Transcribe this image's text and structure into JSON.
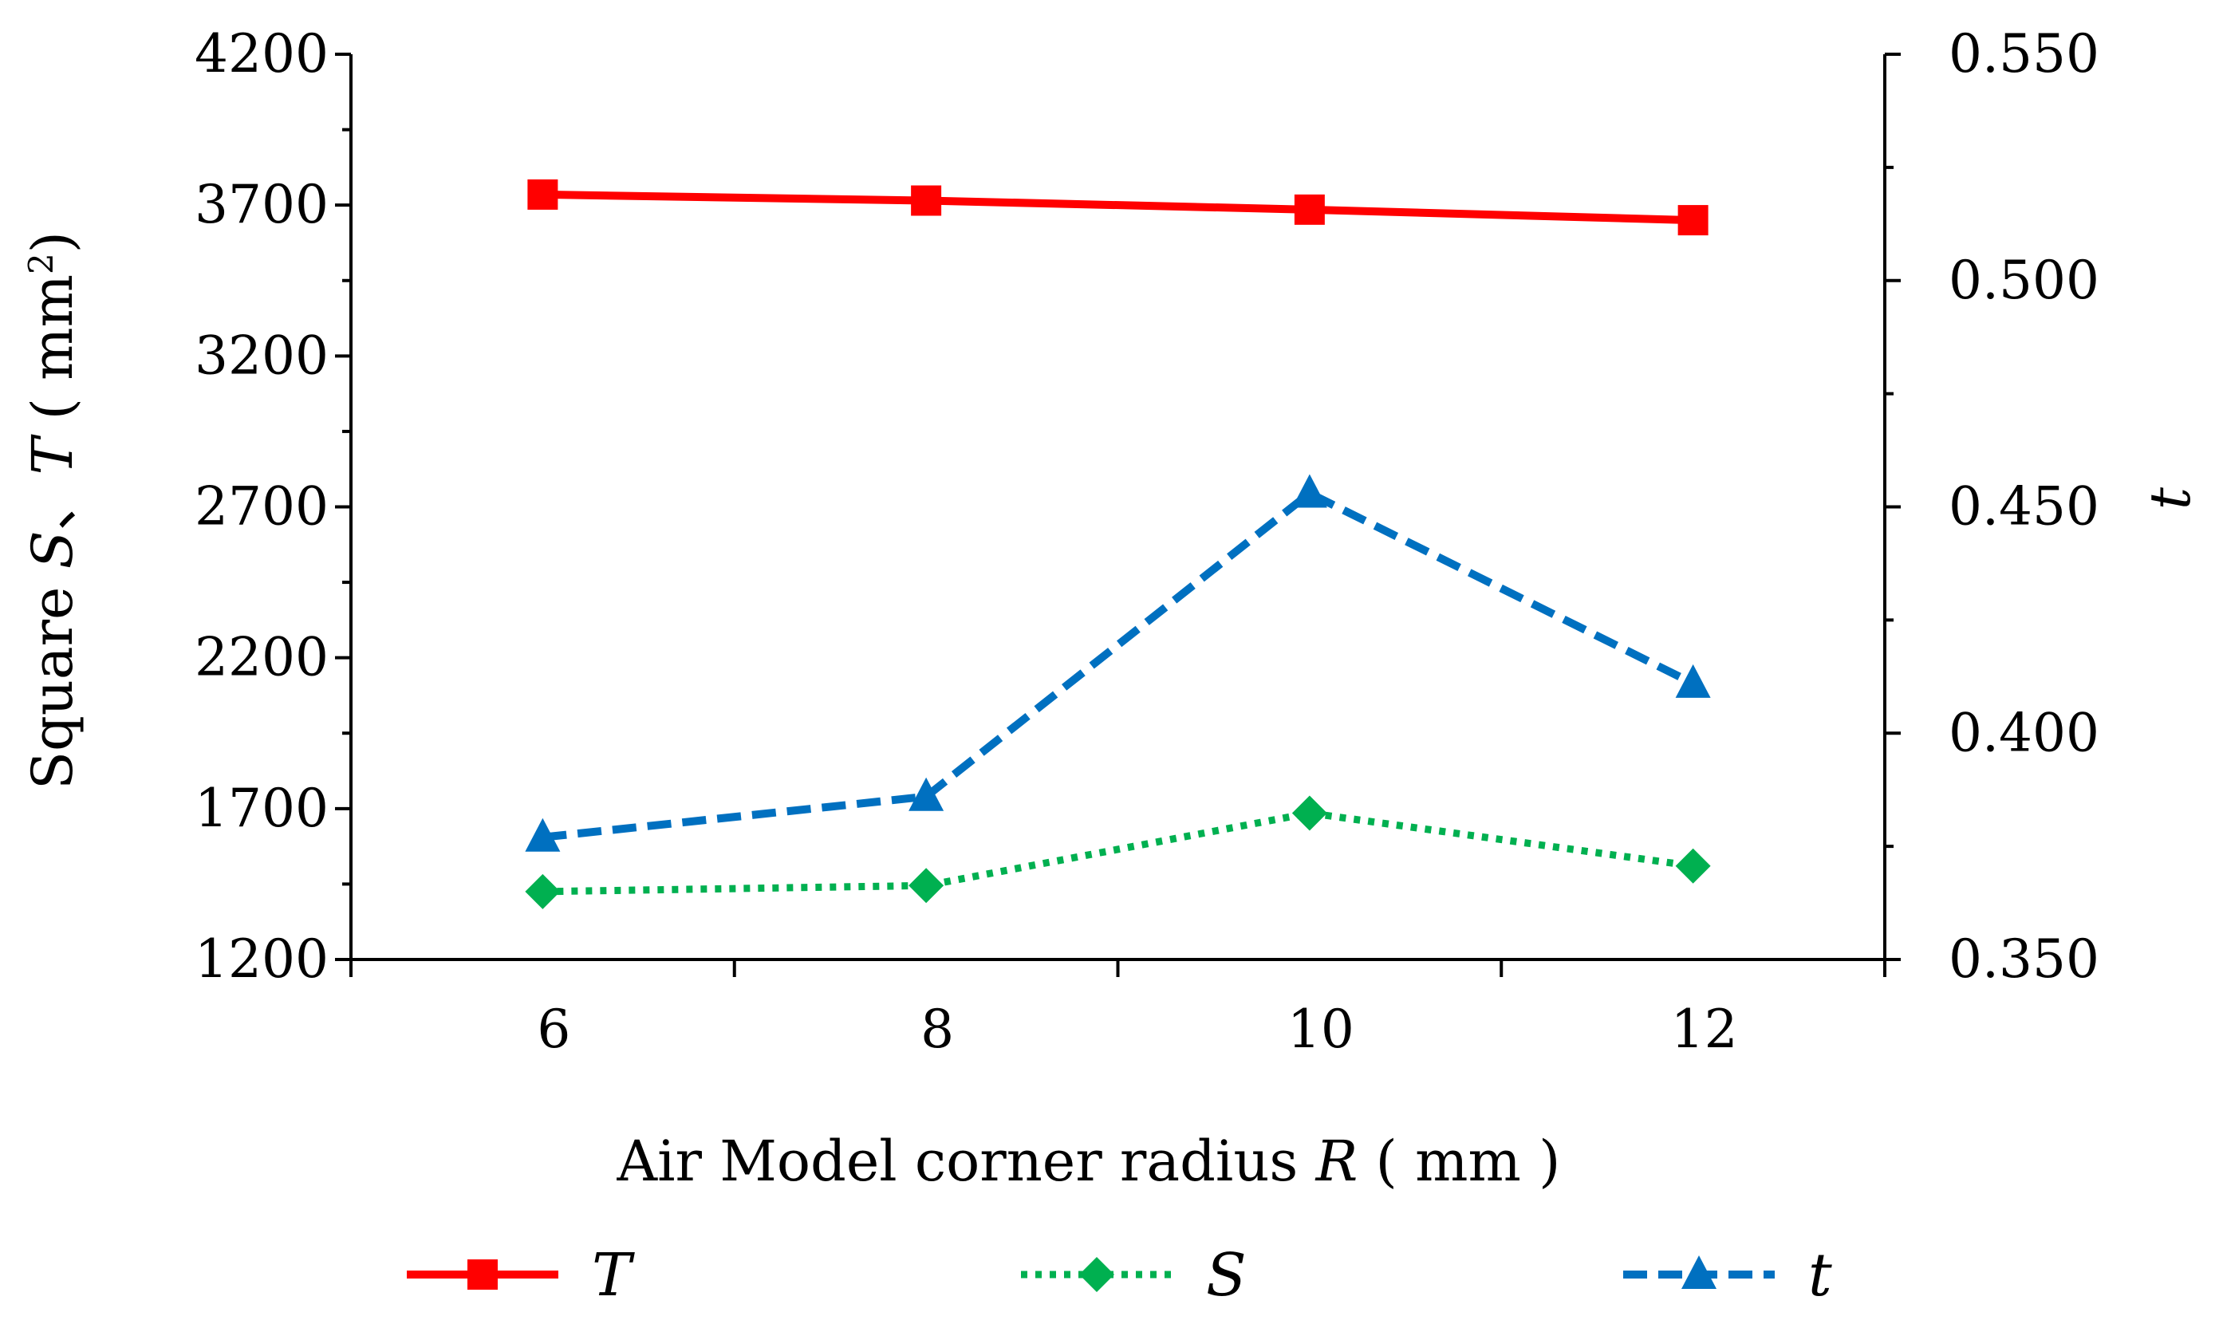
{
  "chart_data": {
    "type": "line",
    "x": [
      6,
      8,
      10,
      12
    ],
    "xlabel": {
      "prefix": "Air Model corner radius ",
      "var": "R",
      "suffix": " ( mm )"
    },
    "ylabel": {
      "prefix": "Square ",
      "var1": "S",
      "sep": "、",
      "var2": "T",
      "suffix": " ( mm",
      "sup": "2",
      "end": ")"
    },
    "y2label": "t",
    "xlim": [
      5,
      13
    ],
    "ylim": [
      1200,
      4200
    ],
    "y2lim": [
      0.35,
      0.55
    ],
    "x_ticks": [
      "6",
      "8",
      "10",
      "12"
    ],
    "y_ticks": [
      "1200",
      "1700",
      "2200",
      "2700",
      "3200",
      "3700",
      "4200"
    ],
    "y2_ticks": [
      "0.350",
      "0.400",
      "0.450",
      "0.500",
      "0.550"
    ],
    "series": [
      {
        "name": "T",
        "axis": "left",
        "values": [
          3735,
          3715,
          3685,
          3650
        ],
        "color": "#ff0000",
        "style": "solid",
        "marker": "square"
      },
      {
        "name": "S",
        "axis": "left",
        "values": [
          1425,
          1445,
          1685,
          1510
        ],
        "color": "#00b050",
        "style": "dotted",
        "marker": "diamond"
      },
      {
        "name": "t",
        "axis": "right",
        "values": [
          0.377,
          0.386,
          0.453,
          0.411
        ],
        "color": "#0070c0",
        "style": "dashed",
        "marker": "triangle"
      }
    ],
    "legend_position": "bottom",
    "grid": false
  }
}
